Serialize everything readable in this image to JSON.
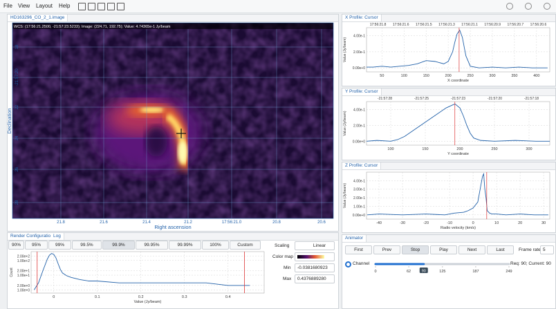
{
  "menu": [
    "File",
    "View",
    "Layout",
    "Help"
  ],
  "image_panel": {
    "tab": "HD163296_CO_2_1.image",
    "wcs": "WCS: (17:56:21.2500, -21:57:23.5233); Image: (224.71, 192.75); Value: 4.74365e-1 Jy/beam",
    "y_labels": [
      "18",
      "-21:57:20",
      "22",
      "24",
      "26",
      "28"
    ],
    "x_labels": [
      "21.8",
      "21.6",
      "21.4",
      "21.2",
      "17:56:21.0",
      "20.8",
      "20.6"
    ],
    "y_title": "Declination",
    "x_title": "Right ascension"
  },
  "render_config": {
    "tabs": [
      "Render Configuration",
      "Log"
    ],
    "percentiles": [
      "90%",
      "95%",
      "99%",
      "99.5%",
      "99.9%",
      "99.95%",
      "99.99%",
      "100%",
      "Custom"
    ],
    "scaling_label": "Scaling",
    "scaling": "Linear",
    "colormap_label": "Color map",
    "min_label": "Min",
    "min": -0.0381680923,
    "max_label": "Max",
    "max": {
      "value": 0.437688928,
      "label": "0.4376889280"
    },
    "histogram": {
      "type": "line",
      "log_y": true,
      "color": "#1f5fa8",
      "x": [
        -0.045,
        -0.035,
        -0.025,
        -0.015,
        -0.01,
        -0.005,
        0,
        0.005,
        0.01,
        0.015,
        0.02,
        0.03,
        0.04,
        0.06,
        0.08,
        0.1,
        0.15,
        0.2,
        0.25,
        0.3,
        0.35,
        0.4,
        0.45
      ],
      "values": [
        1,
        3,
        20,
        120,
        230,
        300,
        260,
        150,
        60,
        25,
        14,
        9,
        7,
        5,
        4,
        4,
        3,
        3,
        3,
        3,
        3,
        2,
        2
      ],
      "xlim": [
        -0.052,
        0.483
      ],
      "ylim": [
        0.6,
        400
      ],
      "xticks": [
        0,
        0.1,
        0.2,
        0.3,
        0.4
      ],
      "yticks": [
        {
          "value": 1,
          "label": "1.00e+0"
        },
        {
          "value": 2,
          "label": "2.00e+0"
        },
        {
          "value": 10,
          "label": "1.00e+1"
        },
        {
          "value": 20,
          "label": "2.00e+1"
        },
        {
          "value": 100,
          "label": "1.00e+2"
        },
        {
          "value": 200,
          "label": "2.00e+2"
        }
      ],
      "xlabel": "Value (Jy/beam)",
      "ylabel": "Count"
    }
  },
  "x_profile": {
    "type": "line",
    "title": "X Profile: Cursor",
    "color": "#1f5fa8",
    "top_labels": [
      "17:56:21.8",
      "17:56:21.6",
      "17:56:21.5",
      "17:56:21.3",
      "17:56:21.1",
      "17:56:20.9",
      "17:56:20.7",
      "17:56:20.6"
    ],
    "x": [
      15,
      30,
      50,
      70,
      90,
      110,
      130,
      150,
      170,
      190,
      200,
      210,
      215,
      220,
      226,
      232,
      240,
      250,
      270,
      300,
      330,
      360,
      390,
      425
    ],
    "values": [
      0.01,
      0.01,
      0.02,
      0.01,
      0.02,
      0.03,
      0.05,
      0.09,
      0.08,
      0.05,
      0.08,
      0.2,
      0.32,
      0.42,
      0.47,
      0.38,
      0.15,
      0.02,
      0,
      0.01,
      0,
      0.01,
      0,
      0
    ],
    "cursor": 224.71,
    "xlim": [
      15,
      430
    ],
    "ylim": [
      -0.05,
      0.5
    ],
    "xticks": [
      50,
      100,
      150,
      200,
      250,
      300,
      350,
      400
    ],
    "yticks": [
      {
        "value": 0,
        "label": "0.00e+0"
      },
      {
        "value": 0.2,
        "label": "2.00e-1"
      },
      {
        "value": 0.4,
        "label": "4.00e-1"
      }
    ],
    "xlabel": "X coordinate",
    "ylabel": "Value (Jy/beam)"
  },
  "y_profile": {
    "type": "line",
    "title": "Y Profile: Cursor",
    "color": "#1f5fa8",
    "top_labels": [
      "-21:57:28",
      "-21:57:25",
      "-21:57:23",
      "-21:57:20",
      "-21:57:18"
    ],
    "x": [
      65,
      80,
      100,
      110,
      120,
      130,
      140,
      150,
      160,
      170,
      180,
      190,
      193,
      200,
      205,
      210,
      215,
      220,
      230,
      250,
      280,
      310,
      330
    ],
    "values": [
      0,
      0.01,
      0,
      0.02,
      0.06,
      0.12,
      0.18,
      0.24,
      0.3,
      0.36,
      0.42,
      0.46,
      0.47,
      0.42,
      0.32,
      0.2,
      0.1,
      0.04,
      0.01,
      0,
      0.01,
      0,
      0
    ],
    "cursor": 192.75,
    "xlim": [
      65,
      330
    ],
    "ylim": [
      -0.05,
      0.5
    ],
    "xticks": [
      100,
      150,
      200,
      250,
      300
    ],
    "yticks": [
      {
        "value": 0,
        "label": "0.00e+0"
      },
      {
        "value": 0.2,
        "label": "2.00e-1"
      },
      {
        "value": 0.4,
        "label": "4.00e-1"
      }
    ],
    "xlabel": "Y coordinate",
    "ylabel": "Value (Jy/beam)"
  },
  "z_profile": {
    "type": "line",
    "title": "Z Profile: Cursor",
    "color": "#1f5fa8",
    "x": [
      -45,
      -40,
      -30,
      -20,
      -12,
      -8,
      -4,
      -2,
      0,
      2,
      3,
      4,
      4.5,
      5,
      5.5,
      6,
      7,
      8,
      10,
      14,
      20,
      26,
      32
    ],
    "values": [
      0,
      0.01,
      0,
      0.01,
      0,
      0.02,
      0.03,
      0.05,
      0.08,
      0.15,
      0.3,
      0.45,
      0.48,
      0.3,
      0.2,
      0.05,
      0.02,
      0.01,
      0.01,
      0,
      0.01,
      0,
      0
    ],
    "cursor": 5.8,
    "xlim": [
      -45.3,
      32.6
    ],
    "ylim": [
      -0.05,
      0.5
    ],
    "xticks": [
      -40,
      -30,
      -20,
      -10,
      0,
      10,
      20,
      30
    ],
    "yticks": [
      {
        "value": 0,
        "label": "0.00e+0"
      },
      {
        "value": 0.1,
        "label": "1.00e-1"
      },
      {
        "value": 0.2,
        "label": "2.00e-1"
      },
      {
        "value": 0.3,
        "label": "3.00e-1"
      },
      {
        "value": 0.4,
        "label": "4.00e-1"
      }
    ],
    "xlabel": "Radio velocity (km/s)",
    "ylabel": "Value (Jy/beam)"
  },
  "animator": {
    "tab": "Animator",
    "buttons": [
      "First",
      "Prev",
      "Stop",
      "Play",
      "Next",
      "Last"
    ],
    "frame_rate_label": "Frame rate",
    "frame_rate": 5,
    "channel_label": "Channel",
    "slider_lim": [
      0,
      249
    ],
    "slider_ticks": [
      0,
      62,
      125,
      187,
      249
    ],
    "slider_value": 90,
    "status": "Req: 90; Current: 90"
  }
}
